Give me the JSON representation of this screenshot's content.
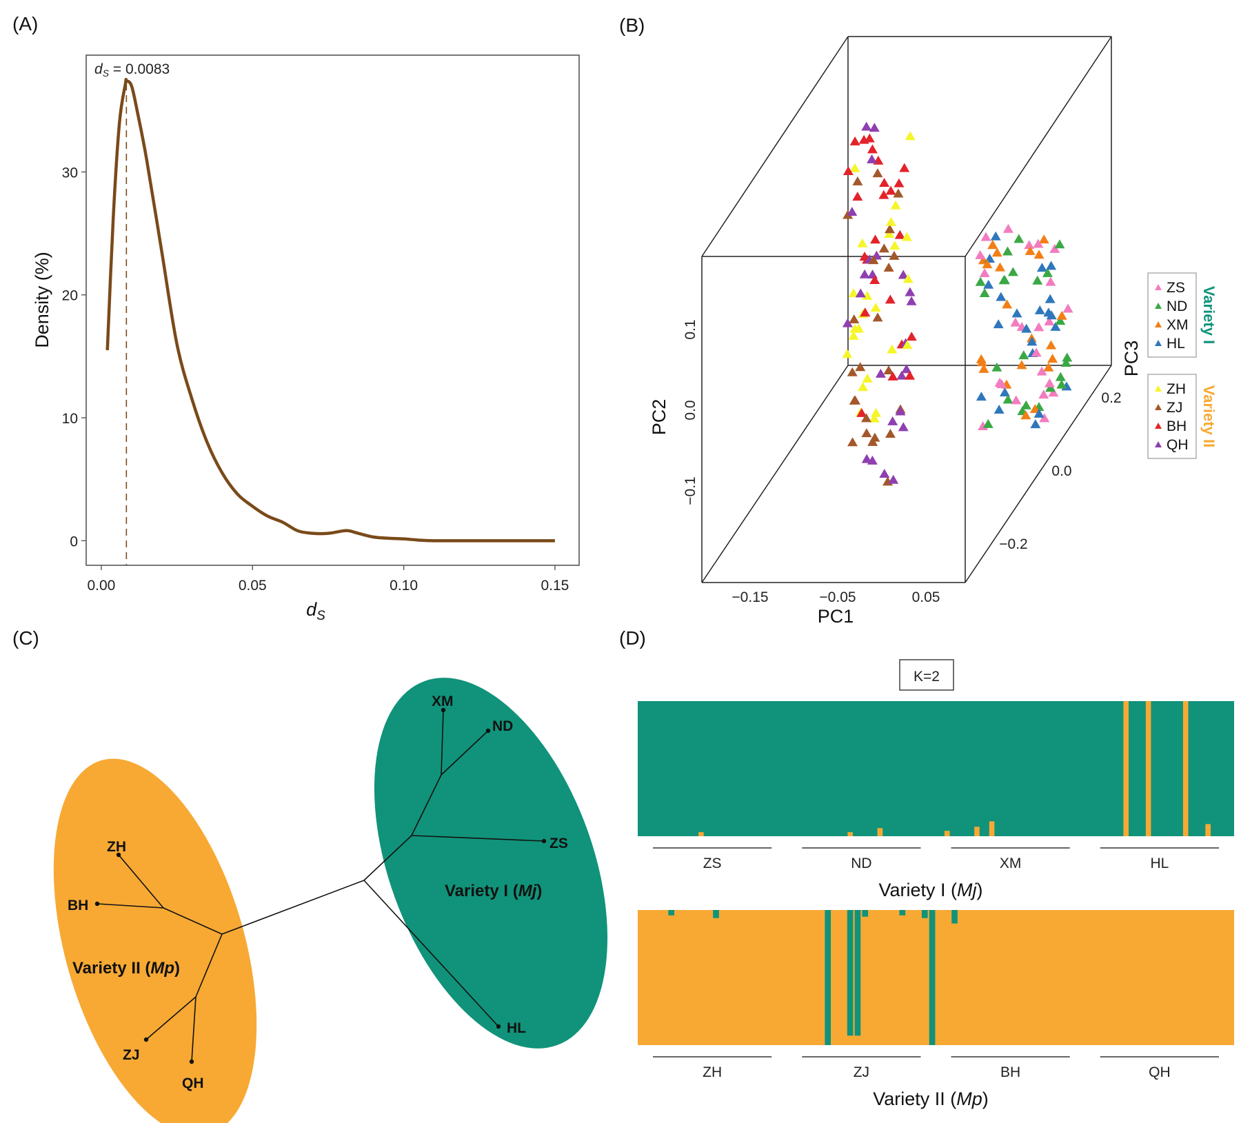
{
  "panels": {
    "a": {
      "label": "(A)"
    },
    "b": {
      "label": "(B)"
    },
    "c": {
      "label": "(C)"
    },
    "d": {
      "label": "(D)"
    }
  },
  "colors": {
    "variety1": "#10937a",
    "variety2": "#f7a934",
    "density_line": "#7a4a1a"
  },
  "chart_data": [
    {
      "type": "line",
      "panel": "A",
      "xlabel": "ds",
      "ylabel": "Density (%)",
      "xlim": [
        -0.005,
        0.158
      ],
      "ylim": [
        -2,
        39.5
      ],
      "xticks": [
        "0.00",
        "0.05",
        "0.10",
        "0.15"
      ],
      "xtick_values": [
        0.0,
        0.05,
        0.1,
        0.15
      ],
      "yticks": [
        "0",
        "10",
        "20",
        "30"
      ],
      "ytick_values": [
        0,
        10,
        20,
        30
      ],
      "annotation": {
        "prefix": "d",
        "sub": "S",
        "text": " = 0.0083",
        "x": 0.0083
      },
      "series": [
        {
          "x": [
            0.002,
            0.004,
            0.006,
            0.008,
            0.0083,
            0.01,
            0.012,
            0.015,
            0.02,
            0.025,
            0.03,
            0.035,
            0.04,
            0.045,
            0.05,
            0.055,
            0.06,
            0.065,
            0.07,
            0.075,
            0.08,
            0.082,
            0.085,
            0.09,
            0.095,
            0.1,
            0.105,
            0.11,
            0.12,
            0.13,
            0.14,
            0.15
          ],
          "y": [
            15.5,
            26.5,
            34.0,
            37.2,
            37.4,
            37.0,
            34.8,
            31.0,
            23.5,
            16.0,
            11.5,
            8.0,
            5.5,
            3.8,
            2.8,
            2.0,
            1.5,
            0.8,
            0.6,
            0.6,
            0.8,
            0.8,
            0.6,
            0.3,
            0.2,
            0.15,
            0.05,
            0.0,
            0.0,
            0.0,
            0.0,
            0.0
          ]
        }
      ]
    },
    {
      "type": "scatter",
      "panel": "B",
      "xlabel": "PC1",
      "ylabel": "PC2",
      "zlabel": "PC3",
      "xticks": [
        "−0.15",
        "−0.05",
        "0.05"
      ],
      "xtick_values": [
        -0.15,
        -0.05,
        0.05
      ],
      "yticks": [
        "−0.1",
        "0.0",
        "0.1"
      ],
      "ytick_values": [
        -0.1,
        0.0,
        0.1
      ],
      "zticks": [
        "−0.2",
        "0.0",
        "0.2"
      ],
      "ztick_values": [
        -0.2,
        0.0,
        0.2
      ],
      "xlim": [
        -0.2,
        0.1
      ],
      "ylim": [
        -0.2,
        0.2
      ],
      "zlim": [
        -0.3,
        0.3
      ],
      "legend_groups": [
        {
          "title": "Variety I",
          "color": "#10937a",
          "items": [
            {
              "label": "ZS",
              "color": "#f27cbf"
            },
            {
              "label": "ND",
              "color": "#3aa845"
            },
            {
              "label": "XM",
              "color": "#f27f16"
            },
            {
              "label": "HL",
              "color": "#2f77bd"
            }
          ]
        },
        {
          "title": "Variety II",
          "color": "#f7a934",
          "items": [
            {
              "label": "ZH",
              "color": "#f5f52a"
            },
            {
              "label": "ZJ",
              "color": "#a3582b"
            },
            {
              "label": "BH",
              "color": "#e3232a"
            },
            {
              "label": "QH",
              "color": "#8f3fb0"
            }
          ]
        }
      ]
    },
    {
      "type": "tree",
      "panel": "C",
      "clades": [
        {
          "label": "Variety I (",
          "italic": "Mj",
          "close": ")",
          "color": "#10937a"
        },
        {
          "label": "Variety II (",
          "italic": "Mp",
          "close": ")",
          "color": "#f7a934"
        }
      ],
      "tips": [
        "XM",
        "ND",
        "ZS",
        "HL",
        "ZH",
        "BH",
        "ZJ",
        "QH"
      ]
    },
    {
      "type": "bar",
      "panel": "D",
      "title": "K=2",
      "groups": [
        {
          "variety": {
            "label": "Variety I (",
            "italic": "Mj",
            "close": ")"
          },
          "populations": [
            "ZS",
            "ND",
            "XM",
            "HL"
          ],
          "n_individuals": 80,
          "main_color": "#10937a",
          "minor_color": "#f7a934",
          "minor_component": [
            {
              "index": 8,
              "value": 0.03
            },
            {
              "index": 28,
              "value": 0.03
            },
            {
              "index": 32,
              "value": 0.06
            },
            {
              "index": 41,
              "value": 0.04
            },
            {
              "index": 45,
              "value": 0.07
            },
            {
              "index": 47,
              "value": 0.11
            },
            {
              "index": 65,
              "value": 1.0
            },
            {
              "index": 68,
              "value": 1.0
            },
            {
              "index": 73,
              "value": 1.0
            },
            {
              "index": 76,
              "value": 0.09
            }
          ]
        },
        {
          "variety": {
            "label": "Variety II (",
            "italic": "Mp",
            "close": ")"
          },
          "populations": [
            "ZH",
            "ZJ",
            "BH",
            "QH"
          ],
          "n_individuals": 80,
          "main_color": "#f7a934",
          "minor_color": "#10937a",
          "minor_component": [
            {
              "index": 4,
              "value": 0.04
            },
            {
              "index": 10,
              "value": 0.06
            },
            {
              "index": 25,
              "value": 1.0
            },
            {
              "index": 28,
              "value": 0.93
            },
            {
              "index": 29,
              "value": 0.93
            },
            {
              "index": 30,
              "value": 0.05
            },
            {
              "index": 35,
              "value": 0.04
            },
            {
              "index": 38,
              "value": 0.06
            },
            {
              "index": 39,
              "value": 1.0
            },
            {
              "index": 42,
              "value": 0.1
            }
          ]
        }
      ]
    }
  ]
}
